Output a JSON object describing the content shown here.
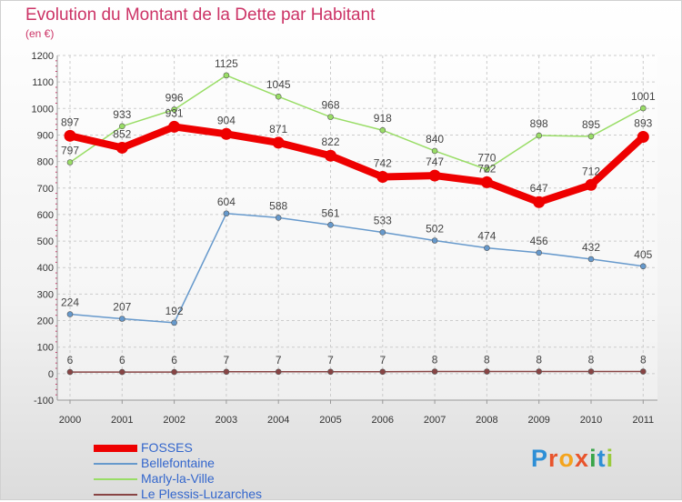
{
  "title": "Evolution du Montant de la Dette par Habitant",
  "subtitle": "(en €)",
  "brand": {
    "letters": [
      "P",
      "r",
      "o",
      "x",
      "i",
      "t",
      "i"
    ],
    "colors": [
      "#2e8fd6",
      "#e8542c",
      "#f4a41d",
      "#e8542c",
      "#3aa54a",
      "#2e8fd6",
      "#9aca3c"
    ]
  },
  "chart_data": {
    "type": "line",
    "title": "Evolution du Montant de la Dette par Habitant",
    "subtitle": "(en €)",
    "x": [
      "2000",
      "2001",
      "2002",
      "2003",
      "2004",
      "2005",
      "2006",
      "2007",
      "2008",
      "2009",
      "2010",
      "2011"
    ],
    "ylim": [
      -100,
      1200
    ],
    "yticks": [
      "-100",
      "0",
      "100",
      "200",
      "300",
      "400",
      "500",
      "600",
      "700",
      "800",
      "900",
      "1000",
      "1100",
      "1200"
    ],
    "grid": true,
    "legend_position": "bottom-left",
    "series": [
      {
        "name": "FOSSES",
        "color": "#ee0000",
        "emphasis": "thick",
        "values": [
          897,
          852,
          931,
          904,
          871,
          822,
          742,
          747,
          722,
          647,
          712,
          893
        ],
        "labels": [
          "897",
          "852",
          "931",
          "904",
          "871",
          "822",
          "742",
          "747",
          "722",
          "647",
          "712",
          "893"
        ]
      },
      {
        "name": "Bellefontaine",
        "color": "#6699cc",
        "emphasis": "thin",
        "values": [
          224,
          207,
          192,
          604,
          588,
          561,
          533,
          502,
          474,
          456,
          432,
          405
        ],
        "labels": [
          "224",
          "207",
          "192",
          "604",
          "588",
          "561",
          "533",
          "502",
          "474",
          "456",
          "432",
          "405"
        ]
      },
      {
        "name": "Marly-la-Ville",
        "color": "#99dd66",
        "emphasis": "thin",
        "values": [
          797,
          933,
          996,
          1125,
          1045,
          968,
          918,
          840,
          770,
          898,
          895,
          1001
        ],
        "labels": [
          "797",
          "933",
          "996",
          "1125",
          "1045",
          "968",
          "918",
          "840",
          "770",
          "898",
          "895",
          "1001"
        ]
      },
      {
        "name": "Le Plessis-Luzarches",
        "color": "#884444",
        "emphasis": "thin",
        "values": [
          6,
          6,
          6,
          7,
          7,
          7,
          7,
          8,
          8,
          8,
          8,
          8
        ],
        "labels": [
          "6",
          "6",
          "6",
          "7",
          "7",
          "7",
          "7",
          "8",
          "8",
          "8",
          "8",
          "8"
        ]
      }
    ]
  }
}
